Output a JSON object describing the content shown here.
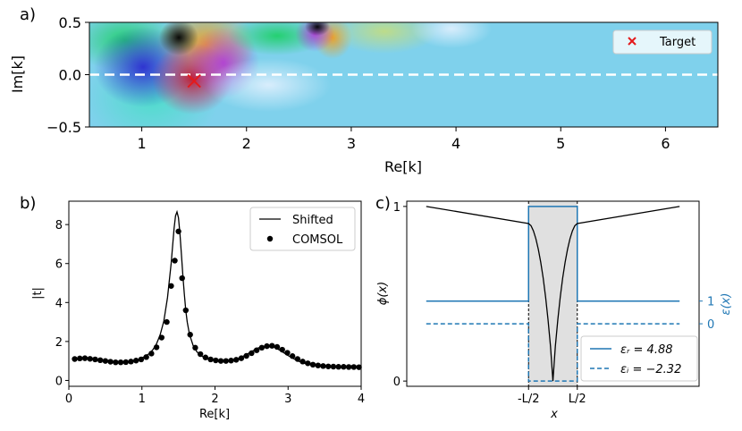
{
  "chart_data": [
    {
      "type": "heatmap",
      "panel_label": "a)",
      "xlabel": "Re[k]",
      "ylabel": "Im[k]",
      "xlim": [
        0.5,
        6.5
      ],
      "ylim": [
        -0.5,
        0.5
      ],
      "xticks": [
        "1",
        "2",
        "3",
        "4",
        "5",
        "6"
      ],
      "yticks": [
        "0.5",
        "0.0",
        "−0.5"
      ],
      "legend": [
        "Target"
      ],
      "legend_position": "upper right",
      "target": {
        "x": 1.5,
        "y": -0.06
      },
      "dashed_line_y": 0.0,
      "features": [
        {
          "x": 1.3,
          "y": 0.33
        },
        {
          "x": 2.72,
          "y": 0.45
        },
        {
          "x": 4.0,
          "y": 0.55
        }
      ],
      "background_color": "#7fd1ec"
    },
    {
      "type": "line",
      "panel_label": "b)",
      "xlabel": "Re[k]",
      "ylabel": "|t|",
      "xlim": [
        0,
        4
      ],
      "ylim": [
        -0.3,
        9.2
      ],
      "xticks": [
        "0",
        "1",
        "2",
        "3",
        "4"
      ],
      "yticks": [
        "0",
        "2",
        "4",
        "6",
        "8"
      ],
      "legend": [
        "Shifted",
        "COMSOL"
      ],
      "legend_position": "upper right",
      "series": [
        {
          "name": "Shifted",
          "x": [
            0.05,
            0.1,
            0.15,
            0.2,
            0.25,
            0.3,
            0.35,
            0.4,
            0.45,
            0.5,
            0.55,
            0.6,
            0.65,
            0.7,
            0.75,
            0.8,
            0.85,
            0.9,
            0.95,
            1.0,
            1.05,
            1.1,
            1.15,
            1.2,
            1.25,
            1.3,
            1.35,
            1.4,
            1.42,
            1.44,
            1.46,
            1.48,
            1.5,
            1.52,
            1.54,
            1.56,
            1.58,
            1.6,
            1.62,
            1.65,
            1.7,
            1.75,
            1.8,
            1.85,
            1.9,
            1.95,
            2.0,
            2.05,
            2.1,
            2.15,
            2.2,
            2.25,
            2.3,
            2.35,
            2.4,
            2.45,
            2.5,
            2.55,
            2.6,
            2.65,
            2.7,
            2.75,
            2.8,
            2.85,
            2.9,
            2.95,
            3.0,
            3.05,
            3.1,
            3.15,
            3.2,
            3.25,
            3.3,
            3.35,
            3.4,
            3.45,
            3.5,
            3.55,
            3.6,
            3.65,
            3.7,
            3.75,
            3.8,
            3.85,
            3.9,
            3.95,
            4.0
          ],
          "values": [
            1.08,
            1.1,
            1.12,
            1.13,
            1.12,
            1.1,
            1.07,
            1.05,
            1.02,
            0.99,
            0.96,
            0.94,
            0.93,
            0.93,
            0.94,
            0.96,
            0.99,
            1.03,
            1.08,
            1.16,
            1.25,
            1.38,
            1.58,
            1.88,
            2.35,
            3.05,
            4.25,
            6.0,
            6.9,
            7.8,
            8.45,
            8.65,
            8.35,
            7.55,
            6.5,
            5.4,
            4.45,
            3.6,
            3.0,
            2.38,
            1.8,
            1.48,
            1.3,
            1.18,
            1.1,
            1.05,
            1.02,
            1.0,
            1.0,
            1.01,
            1.03,
            1.06,
            1.11,
            1.18,
            1.27,
            1.37,
            1.48,
            1.59,
            1.68,
            1.74,
            1.77,
            1.77,
            1.72,
            1.63,
            1.52,
            1.4,
            1.28,
            1.17,
            1.07,
            0.98,
            0.91,
            0.85,
            0.81,
            0.78,
            0.76,
            0.74,
            0.73,
            0.72,
            0.71,
            0.7,
            0.7,
            0.69,
            0.69,
            0.69,
            0.68,
            0.68,
            0.68
          ]
        },
        {
          "name": "COMSOL",
          "x": [
            0.08,
            0.15,
            0.22,
            0.29,
            0.36,
            0.43,
            0.5,
            0.57,
            0.64,
            0.71,
            0.78,
            0.85,
            0.92,
            0.99,
            1.06,
            1.13,
            1.2,
            1.27,
            1.34,
            1.4,
            1.45,
            1.5,
            1.55,
            1.6,
            1.66,
            1.73,
            1.8,
            1.87,
            1.94,
            2.01,
            2.08,
            2.15,
            2.22,
            2.29,
            2.36,
            2.43,
            2.5,
            2.57,
            2.64,
            2.71,
            2.78,
            2.85,
            2.92,
            2.99,
            3.06,
            3.13,
            3.2,
            3.27,
            3.34,
            3.41,
            3.48,
            3.55,
            3.62,
            3.69,
            3.76,
            3.83,
            3.9,
            3.97
          ],
          "values": [
            1.1,
            1.13,
            1.14,
            1.11,
            1.08,
            1.04,
            1.0,
            0.96,
            0.93,
            0.93,
            0.94,
            0.97,
            1.02,
            1.08,
            1.2,
            1.38,
            1.7,
            2.2,
            3.0,
            4.85,
            6.15,
            7.65,
            5.25,
            3.6,
            2.35,
            1.68,
            1.35,
            1.18,
            1.08,
            1.03,
            1.0,
            1.0,
            1.02,
            1.06,
            1.14,
            1.26,
            1.4,
            1.55,
            1.68,
            1.76,
            1.78,
            1.72,
            1.58,
            1.42,
            1.25,
            1.1,
            0.97,
            0.88,
            0.81,
            0.77,
            0.74,
            0.72,
            0.71,
            0.7,
            0.7,
            0.69,
            0.69,
            0.68
          ]
        }
      ]
    },
    {
      "type": "line",
      "panel_label": "c)",
      "xlabel": "x",
      "ylabel": "ϕ(x)",
      "ylabel_right": "ε(x)",
      "xticks": [
        "-L/2",
        "L/2"
      ],
      "yticks": [
        "0",
        "1"
      ],
      "yticks_right": [
        "0",
        "1"
      ],
      "legend": [
        "εᵣ = 4.88",
        "εᵢ = −2.32"
      ],
      "legend_position": "lower right",
      "eps_r": 4.88,
      "eps_i": -2.32,
      "xlim": [
        -3,
        3
      ],
      "ylim": [
        -0.03,
        1.03
      ],
      "shaded_region": [
        -0.5,
        0.5
      ],
      "phi": {
        "x": [
          -2.6,
          -0.5,
          -0.45,
          -0.4,
          -0.35,
          -0.3,
          -0.25,
          -0.2,
          -0.15,
          -0.1,
          -0.05,
          0.0,
          0.05,
          0.1,
          0.15,
          0.2,
          0.25,
          0.3,
          0.35,
          0.4,
          0.45,
          0.5,
          2.6
        ],
        "values": [
          1.0,
          0.902,
          0.89,
          0.86,
          0.815,
          0.755,
          0.68,
          0.59,
          0.48,
          0.35,
          0.2,
          0.0,
          0.2,
          0.35,
          0.48,
          0.59,
          0.68,
          0.755,
          0.815,
          0.86,
          0.89,
          0.902,
          1.0
        ]
      },
      "eps_real_profile": {
        "x": [
          -2.6,
          -0.5,
          -0.5,
          0.5,
          0.5,
          2.6
        ],
        "values": [
          0.458,
          0.458,
          1.0,
          1.0,
          0.458,
          0.458
        ]
      },
      "eps_imag_profile": {
        "x": [
          -2.6,
          -0.5,
          -0.5,
          0.5,
          0.5,
          2.6
        ],
        "values": [
          0.328,
          0.328,
          0.0,
          0.0,
          0.328,
          0.328
        ]
      }
    }
  ]
}
